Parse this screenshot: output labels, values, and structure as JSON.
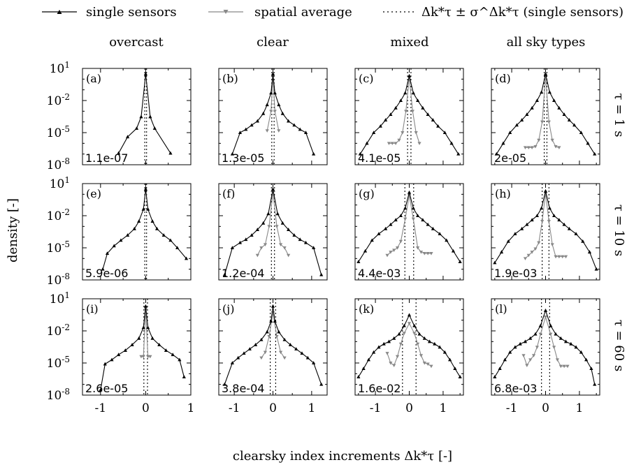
{
  "legend": {
    "single": "single sensors",
    "spatial": "spatial average",
    "stdband": "Δk*τ ± σ^Δk*τ (single sensors)"
  },
  "figure": {
    "ylabel": "density [-]",
    "xlabel": "clearsky index increments Δk*τ [-]"
  },
  "chart_data": {
    "type": "line",
    "y_scale": "log",
    "ylim": [
      1e-08,
      10
    ],
    "yticks": [
      "10^1",
      "10^-2",
      "10^-5",
      "10^-8"
    ],
    "xticks": [
      "-1",
      "0",
      "1"
    ],
    "columns": [
      "overcast",
      "clear",
      "mixed",
      "all sky types"
    ],
    "rows": [
      "τ = 1 s",
      "τ = 10 s",
      "τ = 60 s"
    ],
    "panels": [
      {
        "id": "(a)",
        "col": 0,
        "row": 0,
        "xlim": [
          -1.4,
          1.0
        ],
        "annotation": "1.1e-07",
        "std_lines": [
          -0.02,
          0.02
        ],
        "single": {
          "x": [
            -0.6,
            -0.4,
            -0.2,
            -0.1,
            0,
            0.1,
            0.2,
            0.55
          ],
          "y": [
            1.2e-07,
            4e-06,
            2.5e-05,
            0.0003,
            3,
            0.0003,
            2.5e-05,
            1.2e-07
          ]
        },
        "spatial": {
          "x": [],
          "y": []
        }
      },
      {
        "id": "(b)",
        "col": 1,
        "row": 0,
        "xlim": [
          -1.4,
          1.4
        ],
        "annotation": "1.3e-05",
        "std_lines": [
          -0.03,
          0.03
        ],
        "single": {
          "x": [
            -1.05,
            -0.85,
            -0.7,
            -0.55,
            -0.4,
            -0.25,
            -0.15,
            -0.05,
            0,
            0.05,
            0.15,
            0.25,
            0.4,
            0.55,
            0.7,
            0.85,
            1.05
          ],
          "y": [
            1e-07,
            1e-05,
            2e-05,
            5e-05,
            0.00012,
            0.0006,
            0.004,
            0.05,
            3,
            0.05,
            0.004,
            0.0006,
            0.00012,
            5e-05,
            2e-05,
            1e-05,
            1e-07
          ]
        },
        "spatial": {
          "x": [
            -0.15,
            -0.05,
            0,
            0.05,
            0.15
          ],
          "y": [
            1.5e-05,
            0.001,
            2,
            0.001,
            1.5e-05
          ]
        }
      },
      {
        "id": "(c)",
        "col": 2,
        "row": 0,
        "xlim": [
          -1.6,
          1.6
        ],
        "annotation": "4.1e-05",
        "std_lines": [
          -0.05,
          0.05
        ],
        "single": {
          "x": [
            -1.45,
            -1.25,
            -1.05,
            -0.85,
            -0.7,
            -0.55,
            -0.4,
            -0.25,
            -0.12,
            0,
            0.12,
            0.25,
            0.4,
            0.55,
            0.7,
            0.85,
            1.05,
            1.25,
            1.45
          ],
          "y": [
            1e-07,
            1e-06,
            1e-05,
            4e-05,
            0.00015,
            0.0005,
            0.002,
            0.01,
            0.05,
            2,
            0.05,
            0.01,
            0.002,
            0.0005,
            0.00015,
            4e-05,
            1e-05,
            1e-06,
            1e-07
          ]
        },
        "spatial": {
          "x": [
            -0.6,
            -0.5,
            -0.4,
            -0.3,
            -0.2,
            -0.1,
            0,
            0.1,
            0.2,
            0.3
          ],
          "y": [
            1e-06,
            1e-06,
            1e-06,
            2e-06,
            1e-05,
            0.001,
            1.5,
            0.001,
            1e-05,
            1e-06
          ]
        }
      },
      {
        "id": "(d)",
        "col": 3,
        "row": 0,
        "xlim": [
          -1.6,
          1.6
        ],
        "annotation": "2e-05",
        "std_lines": [
          -0.04,
          0.04
        ],
        "single": {
          "x": [
            -1.45,
            -1.25,
            -1.05,
            -0.85,
            -0.7,
            -0.55,
            -0.4,
            -0.25,
            -0.12,
            0,
            0.12,
            0.25,
            0.4,
            0.55,
            0.7,
            0.85,
            1.05,
            1.25,
            1.45
          ],
          "y": [
            1e-07,
            1e-06,
            1e-05,
            5e-05,
            0.00015,
            0.0005,
            0.002,
            0.01,
            0.06,
            3,
            0.06,
            0.01,
            0.002,
            0.0005,
            0.00015,
            5e-05,
            1e-05,
            1e-06,
            1e-07
          ]
        },
        "spatial": {
          "x": [
            -0.6,
            -0.5,
            -0.4,
            -0.3,
            -0.2,
            -0.1,
            0,
            0.1,
            0.2,
            0.3,
            0.4
          ],
          "y": [
            4e-07,
            4e-07,
            4e-07,
            5e-07,
            2e-06,
            0.0001,
            2,
            0.0001,
            2e-06,
            5e-07,
            4e-07
          ]
        }
      },
      {
        "id": "(e)",
        "col": 0,
        "row": 1,
        "xlim": [
          -1.4,
          1.0
        ],
        "annotation": "5.9e-06",
        "std_lines": [
          -0.02,
          0.02
        ],
        "single": {
          "x": [
            -0.95,
            -0.85,
            -0.7,
            -0.55,
            -0.4,
            -0.25,
            -0.15,
            -0.05,
            0,
            0.05,
            0.15,
            0.25,
            0.4,
            0.55,
            0.7,
            0.9
          ],
          "y": [
            1e-07,
            3e-06,
            1.5e-05,
            5e-05,
            0.00015,
            0.0006,
            0.003,
            0.04,
            3,
            0.04,
            0.003,
            0.0006,
            0.00015,
            5e-05,
            1e-05,
            1e-06
          ]
        },
        "spatial": {
          "x": [],
          "y": []
        }
      },
      {
        "id": "(f)",
        "col": 1,
        "row": 1,
        "xlim": [
          -1.4,
          1.4
        ],
        "annotation": "1.2e-04",
        "std_lines": [
          -0.04,
          0.04
        ],
        "single": {
          "x": [
            -1.25,
            -1.05,
            -0.85,
            -0.7,
            -0.55,
            -0.4,
            -0.25,
            -0.12,
            0,
            0.12,
            0.25,
            0.4,
            0.55,
            0.7,
            0.85,
            1.05,
            1.25
          ],
          "y": [
            3e-08,
            1e-05,
            3e-05,
            6e-05,
            0.00015,
            0.0005,
            0.002,
            0.015,
            3,
            0.015,
            0.002,
            0.0005,
            0.00015,
            6e-05,
            3e-05,
            1e-05,
            3e-08
          ]
        },
        "spatial": {
          "x": [
            -0.4,
            -0.3,
            -0.2,
            -0.1,
            0,
            0.1,
            0.2,
            0.3,
            0.4
          ],
          "y": [
            2e-06,
            1e-05,
            2e-05,
            0.001,
            1.5,
            0.001,
            2e-05,
            1e-05,
            2e-06
          ]
        }
      },
      {
        "id": "(g)",
        "col": 2,
        "row": 1,
        "xlim": [
          -1.6,
          1.6
        ],
        "annotation": "4.4e-03",
        "std_lines": [
          -0.13,
          0.13
        ],
        "single": {
          "x": [
            -1.5,
            -1.3,
            -1.1,
            -0.9,
            -0.7,
            -0.55,
            -0.4,
            -0.25,
            -0.12,
            0,
            0.12,
            0.25,
            0.4,
            0.55,
            0.7,
            0.9,
            1.1,
            1.3,
            1.5
          ],
          "y": [
            5e-07,
            5e-06,
            5e-05,
            0.0002,
            0.0006,
            0.0015,
            0.004,
            0.01,
            0.05,
            1.5,
            0.05,
            0.01,
            0.004,
            0.0015,
            0.0006,
            0.0002,
            5e-05,
            5e-06,
            5e-07
          ]
        },
        "spatial": {
          "x": [
            -0.65,
            -0.55,
            -0.45,
            -0.35,
            -0.25,
            -0.12,
            0,
            0.12,
            0.25,
            0.35,
            0.45,
            0.55,
            0.65
          ],
          "y": [
            2e-06,
            4e-06,
            6e-06,
            1e-05,
            4e-05,
            0.005,
            0.8,
            0.005,
            1e-05,
            4e-06,
            3e-06,
            3e-06,
            3e-06
          ]
        }
      },
      {
        "id": "(h)",
        "col": 3,
        "row": 1,
        "xlim": [
          -1.6,
          1.6
        ],
        "annotation": "1.9e-03",
        "std_lines": [
          -0.1,
          0.1
        ],
        "single": {
          "x": [
            -1.5,
            -1.3,
            -1.1,
            -0.9,
            -0.7,
            -0.55,
            -0.4,
            -0.25,
            -0.12,
            0,
            0.12,
            0.25,
            0.4,
            0.55,
            0.7,
            0.9,
            1.1,
            1.3,
            1.5
          ],
          "y": [
            4e-07,
            4e-06,
            4e-05,
            0.0002,
            0.0006,
            0.0015,
            0.004,
            0.01,
            0.05,
            2,
            0.05,
            0.01,
            0.004,
            0.0015,
            0.0006,
            0.0002,
            4e-05,
            4e-06,
            1e-07
          ]
        },
        "spatial": {
          "x": [
            -0.6,
            -0.5,
            -0.4,
            -0.3,
            -0.2,
            -0.1,
            0,
            0.1,
            0.2,
            0.3,
            0.4,
            0.5,
            0.6
          ],
          "y": [
            1e-06,
            2e-06,
            4e-06,
            8e-06,
            3e-05,
            0.003,
            1.2,
            0.003,
            2e-05,
            1.5e-06,
            1.5e-06,
            1.5e-06,
            1.5e-06
          ]
        }
      },
      {
        "id": "(i)",
        "col": 0,
        "row": 2,
        "xlim": [
          -1.4,
          1.0
        ],
        "annotation": "2.6e-05",
        "std_lines": [
          -0.04,
          0.04
        ],
        "single": {
          "x": [
            -1.0,
            -0.9,
            -0.75,
            -0.6,
            -0.45,
            -0.3,
            -0.15,
            -0.05,
            0,
            0.05,
            0.15,
            0.3,
            0.45,
            0.6,
            0.75,
            0.85
          ],
          "y": [
            3e-08,
            8e-06,
            2e-05,
            6e-05,
            0.00015,
            0.0005,
            0.002,
            0.02,
            2,
            0.02,
            0.002,
            0.0005,
            0.00015,
            6e-05,
            2e-05,
            5e-07
          ]
        },
        "spatial": {
          "x": [
            -0.1,
            -0.05,
            0,
            0.05,
            0.1
          ],
          "y": [
            4e-05,
            4e-05,
            1,
            4e-05,
            4e-05
          ]
        }
      },
      {
        "id": "(j)",
        "col": 1,
        "row": 2,
        "xlim": [
          -1.4,
          1.4
        ],
        "annotation": "3.8e-04",
        "std_lines": [
          -0.07,
          0.07
        ],
        "single": {
          "x": [
            -1.25,
            -1.05,
            -0.9,
            -0.75,
            -0.6,
            -0.45,
            -0.3,
            -0.15,
            -0.05,
            0,
            0.05,
            0.15,
            0.3,
            0.45,
            0.6,
            0.75,
            0.9,
            1.05,
            1.25
          ],
          "y": [
            1e-07,
            1e-05,
            3e-05,
            8e-05,
            0.0002,
            0.0005,
            0.0015,
            0.008,
            0.08,
            2,
            0.08,
            0.008,
            0.0015,
            0.0005,
            0.0002,
            8e-05,
            3e-05,
            1e-05,
            1e-07
          ]
        },
        "spatial": {
          "x": [
            -0.3,
            -0.2,
            -0.1,
            0,
            0.1,
            0.2,
            0.3
          ],
          "y": [
            3e-05,
            0.0001,
            0.003,
            0.5,
            0.003,
            0.0001,
            3e-05
          ]
        }
      },
      {
        "id": "(k)",
        "col": 2,
        "row": 2,
        "xlim": [
          -1.6,
          1.6
        ],
        "annotation": "1.6e-02",
        "std_lines": [
          -0.2,
          0.2
        ],
        "single": {
          "x": [
            -1.5,
            -1.35,
            -1.2,
            -1.05,
            -0.9,
            -0.75,
            -0.6,
            -0.45,
            -0.3,
            -0.15,
            0,
            0.15,
            0.3,
            0.45,
            0.6,
            0.75,
            0.9,
            1.05,
            1.2,
            1.35,
            1.5
          ],
          "y": [
            5e-07,
            3e-06,
            2e-05,
            0.0001,
            0.0003,
            0.0006,
            0.001,
            0.002,
            0.005,
            0.03,
            0.3,
            0.03,
            0.005,
            0.002,
            0.001,
            0.0006,
            0.0003,
            0.0001,
            2e-05,
            3e-06,
            5e-07
          ]
        },
        "spatial": {
          "x": [
            -0.65,
            -0.55,
            -0.45,
            -0.35,
            -0.25,
            -0.15,
            0,
            0.15,
            0.25,
            0.35,
            0.45,
            0.55,
            0.65
          ],
          "y": [
            8e-05,
            1e-05,
            6e-06,
            4e-05,
            0.0006,
            0.006,
            0.05,
            0.006,
            0.0006,
            5e-05,
            1e-05,
            8e-06,
            5e-06
          ]
        }
      },
      {
        "id": "(l)",
        "col": 3,
        "row": 2,
        "xlim": [
          -1.6,
          1.6
        ],
        "annotation": "6.8e-03",
        "std_lines": [
          -0.12,
          0.12
        ],
        "single": {
          "x": [
            -1.5,
            -1.35,
            -1.2,
            -1.05,
            -0.9,
            -0.75,
            -0.6,
            -0.45,
            -0.3,
            -0.15,
            0,
            0.15,
            0.3,
            0.45,
            0.6,
            0.75,
            0.9,
            1.05,
            1.2,
            1.35,
            1.45
          ],
          "y": [
            5e-07,
            3e-06,
            2e-05,
            0.0001,
            0.0003,
            0.0006,
            0.001,
            0.002,
            0.005,
            0.03,
            0.8,
            0.03,
            0.005,
            0.002,
            0.001,
            0.0006,
            0.0003,
            0.0001,
            2e-05,
            3e-06,
            1e-07
          ]
        },
        "spatial": {
          "x": [
            -0.65,
            -0.55,
            -0.45,
            -0.35,
            -0.25,
            -0.15,
            0,
            0.15,
            0.25,
            0.35,
            0.45,
            0.55,
            0.65
          ],
          "y": [
            5e-05,
            6e-06,
            2e-05,
            5e-05,
            0.0003,
            0.005,
            0.2,
            0.005,
            0.0003,
            2e-05,
            5e-06,
            5e-06,
            5e-06
          ]
        }
      }
    ]
  },
  "colors": {
    "single": "#000000",
    "spatial": "#888888",
    "std": "#000000"
  }
}
